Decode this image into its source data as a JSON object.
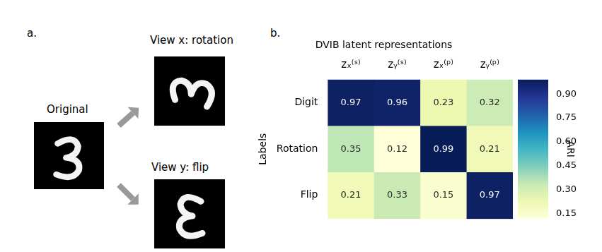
{
  "panel_a": {
    "label": "a.",
    "original": "Original",
    "view_x": "View x: rotation",
    "view_y": "View y: flip"
  },
  "chart_data": {
    "type": "heatmap",
    "panel_label": "b.",
    "title": "DVIB latent representations",
    "x": [
      "zₓ⁽ˢ⁾",
      "zᵧ⁽ˢ⁾",
      "zₓ⁽ᵖ⁾",
      "zᵧ⁽ᵖ⁾"
    ],
    "y": [
      "Digit",
      "Rotation",
      "Flip"
    ],
    "ylabel": "Labels",
    "cells": [
      [
        0.97,
        0.96,
        0.23,
        0.32
      ],
      [
        0.35,
        0.12,
        0.99,
        0.21
      ],
      [
        0.21,
        0.33,
        0.15,
        0.97
      ]
    ],
    "data_labels": true,
    "colorbar": {
      "label": "ARI",
      "range": [
        0.12,
        0.99
      ],
      "ticks": [
        0.15,
        {
          "value": 0.3,
          "label": "0.30"
        },
        0.45,
        {
          "value": 0.6,
          "label": "0.60"
        },
        0.75,
        {
          "value": 0.9,
          "label": "0.90"
        }
      ]
    }
  }
}
